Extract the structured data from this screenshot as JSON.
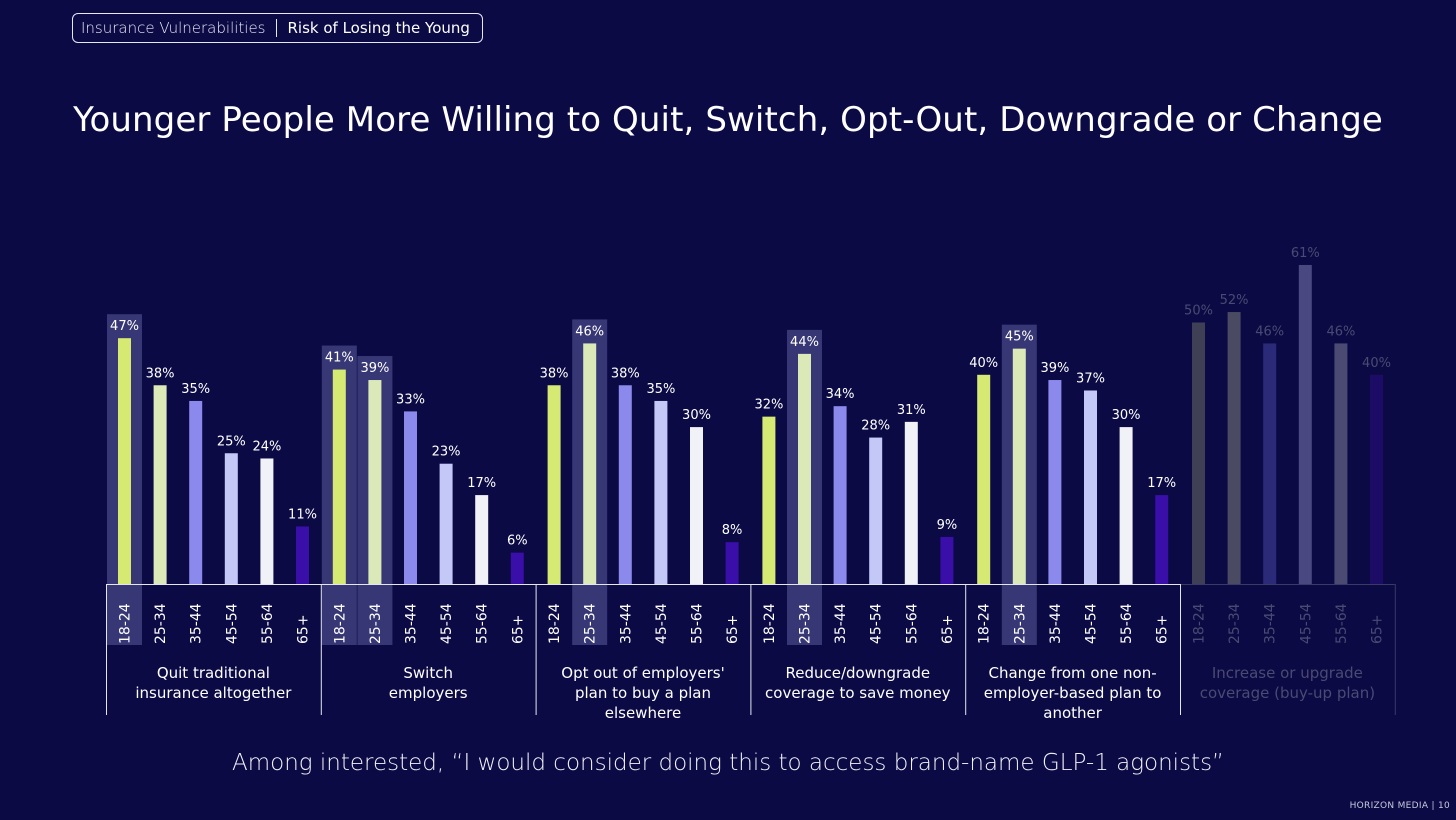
{
  "header": {
    "section_label": "Insurance Vulnerabilities",
    "current_label": "Risk of Losing the Young"
  },
  "title": "Younger People More Willing to Quit, Switch, Opt-Out, Downgrade or Change",
  "footnote": "Among interested, “I would consider doing this to access brand-name GLP-1 agonists”",
  "brand": "HORIZON MEDIA | 10",
  "chart_data": {
    "type": "bar",
    "categories": [
      "18-24",
      "25-34",
      "35-44",
      "45-54",
      "55-64",
      "65+"
    ],
    "groups": [
      {
        "label": "Quit traditional insurance altogether",
        "values": [
          47,
          38,
          35,
          25,
          24,
          11
        ],
        "highlight": [
          0
        ],
        "dimmed": false
      },
      {
        "label": "Switch employers",
        "values": [
          41,
          39,
          33,
          23,
          17,
          6
        ],
        "highlight": [
          0,
          1
        ],
        "dimmed": false
      },
      {
        "label": "Opt out of employers' plan to buy a plan elsewhere",
        "values": [
          38,
          46,
          38,
          35,
          30,
          8
        ],
        "highlight": [
          1
        ],
        "dimmed": false
      },
      {
        "label": "Reduce/downgrade coverage to save money",
        "values": [
          32,
          44,
          34,
          28,
          31,
          9
        ],
        "highlight": [
          1
        ],
        "dimmed": false
      },
      {
        "label": "Change from one non-employer-based plan to another",
        "values": [
          40,
          45,
          39,
          37,
          30,
          17
        ],
        "highlight": [
          1
        ],
        "dimmed": false
      },
      {
        "label": "Increase or upgrade coverage (buy-up plan)",
        "values": [
          50,
          52,
          46,
          61,
          46,
          40
        ],
        "highlight": [],
        "dimmed": true
      }
    ],
    "group_label_lines": [
      [
        "Quit traditional",
        "insurance altogether"
      ],
      [
        "Switch",
        "employers"
      ],
      [
        "Opt out of employers'",
        "plan to buy a plan",
        "elsewhere"
      ],
      [
        "Reduce/downgrade",
        "coverage to save money"
      ],
      [
        "Change from one non-",
        "employer-based plan to",
        "another"
      ],
      [
        "Increase or upgrade",
        "coverage (buy-up plan)"
      ]
    ],
    "value_suffix": "%",
    "ylim": [
      0,
      65
    ],
    "colors": [
      "#d6ea73",
      "#dbe8b8",
      "#8b89ec",
      "#c4c8f7",
      "#f1f1f8",
      "#3a0ea8"
    ],
    "dim_colors": [
      "#3f3f55",
      "#4a4a62",
      "#2a2a78",
      "#4a4880",
      "#4a4a72",
      "#1c0c66"
    ],
    "highlight_color": "rgba(150,150,215,0.33)"
  }
}
